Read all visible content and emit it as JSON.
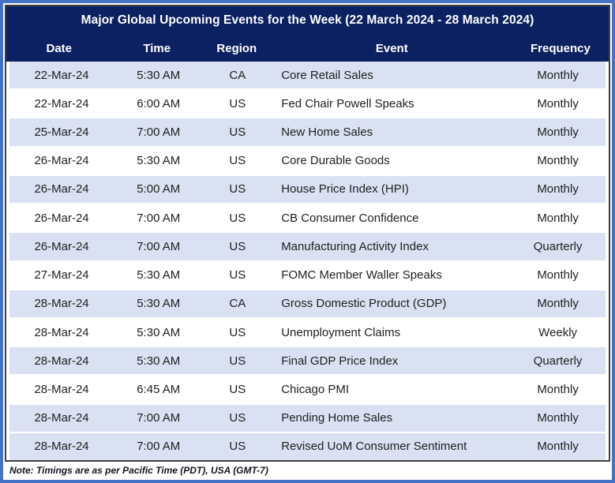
{
  "chart_data": {
    "type": "table",
    "title": "Major Global Upcoming Events for the Week (22 March 2024 - 28 March 2024)",
    "columns": [
      {
        "key": "date",
        "label": "Date"
      },
      {
        "key": "time",
        "label": "Time"
      },
      {
        "key": "region",
        "label": "Region"
      },
      {
        "key": "event",
        "label": "Event"
      },
      {
        "key": "frequency",
        "label": "Frequency"
      }
    ],
    "rows": [
      {
        "date": "22-Mar-24",
        "time": "5:30 AM",
        "region": "CA",
        "event": "Core Retail Sales",
        "frequency": "Monthly"
      },
      {
        "date": "22-Mar-24",
        "time": "6:00 AM",
        "region": "US",
        "event": "Fed Chair Powell Speaks",
        "frequency": "Monthly"
      },
      {
        "date": "25-Mar-24",
        "time": "7:00 AM",
        "region": "US",
        "event": "New Home Sales",
        "frequency": "Monthly"
      },
      {
        "date": "26-Mar-24",
        "time": "5:30 AM",
        "region": "US",
        "event": "Core Durable Goods",
        "frequency": "Monthly"
      },
      {
        "date": "26-Mar-24",
        "time": "5:00 AM",
        "region": "US",
        "event": "House Price Index (HPI)",
        "frequency": "Monthly"
      },
      {
        "date": "26-Mar-24",
        "time": "7:00 AM",
        "region": "US",
        "event": "CB Consumer Confidence",
        "frequency": "Monthly"
      },
      {
        "date": "26-Mar-24",
        "time": "7:00 AM",
        "region": "US",
        "event": "Manufacturing Activity Index",
        "frequency": "Quarterly"
      },
      {
        "date": "27-Mar-24",
        "time": "5:30 AM",
        "region": "US",
        "event": "FOMC Member Waller Speaks",
        "frequency": "Monthly"
      },
      {
        "date": "28-Mar-24",
        "time": "5:30 AM",
        "region": "CA",
        "event": "Gross Domestic Product (GDP)",
        "frequency": "Monthly"
      },
      {
        "date": "28-Mar-24",
        "time": "5:30 AM",
        "region": "US",
        "event": "Unemployment Claims",
        "frequency": "Weekly"
      },
      {
        "date": "28-Mar-24",
        "time": "5:30 AM",
        "region": "US",
        "event": "Final GDP Price Index",
        "frequency": "Quarterly"
      },
      {
        "date": "28-Mar-24",
        "time": "6:45 AM",
        "region": "US",
        "event": "Chicago PMI",
        "frequency": "Monthly"
      },
      {
        "date": "28-Mar-24",
        "time": "7:00 AM",
        "region": "US",
        "event": "Pending Home Sales",
        "frequency": "Monthly"
      },
      {
        "date": "28-Mar-24",
        "time": "7:00 AM",
        "region": "US",
        "event": "Revised UoM Consumer Sentiment",
        "frequency": "Monthly"
      }
    ],
    "note": "Note: Timings are as per Pacific Time (PDT), USA (GMT-7)",
    "layout_hints": {
      "shaded_row_indices": [
        0,
        2,
        4,
        6,
        8,
        10,
        12,
        13
      ],
      "legend_position": "none",
      "grid": "white row separators, no vertical gridlines"
    },
    "colors": {
      "frame_border": "#4472C4",
      "table_outline": "#3F3F3F",
      "header_bg": "#0B2161",
      "header_text": "#FFFFFF",
      "band_row_bg": "#D9E1F2",
      "plain_row_bg": "#FFFFFF",
      "body_text": "#1F1F1F",
      "note_text": "#14161F"
    }
  }
}
